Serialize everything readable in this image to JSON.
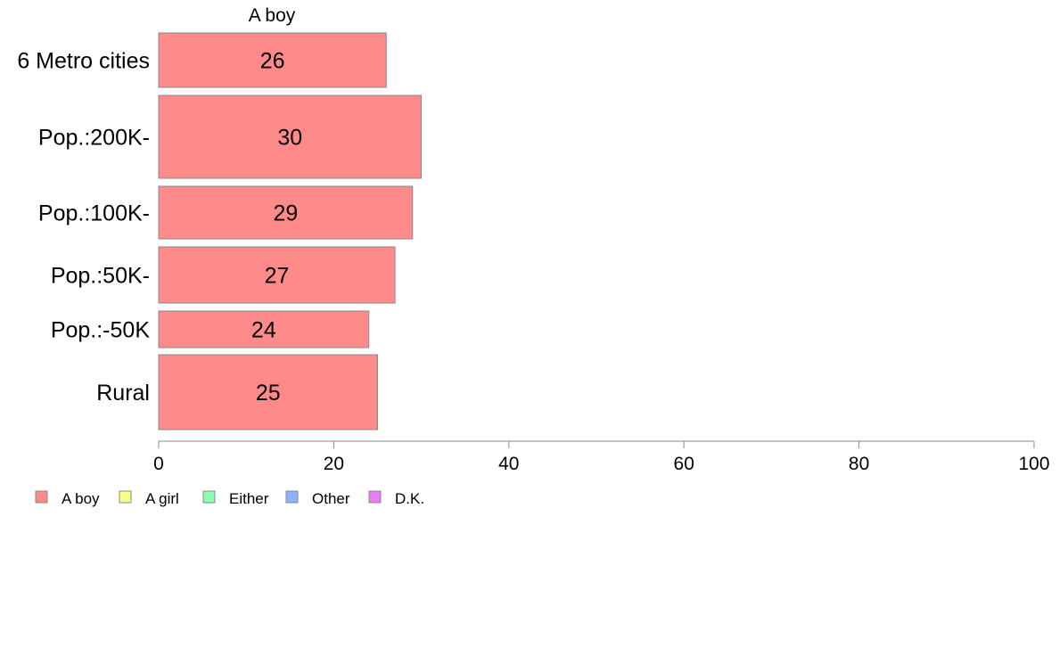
{
  "chart_data": {
    "type": "bar",
    "orientation": "horizontal",
    "categories": [
      "6 Metro cities",
      "Pop.:200K-",
      "Pop.:100K-",
      "Pop.:50K-",
      "Pop.:-50K",
      "Rural"
    ],
    "series": [
      {
        "name": "A boy",
        "values": [
          26,
          30,
          29,
          27,
          24,
          25
        ],
        "color": "#ff8a8a"
      }
    ],
    "series_title": "A boy",
    "xlim": [
      0,
      100
    ],
    "xticks": [
      0,
      20,
      40,
      60,
      80,
      100
    ],
    "grid": false,
    "legend": {
      "position": "bottom-left",
      "entries": [
        {
          "label": "A boy",
          "color": "#ff8a8a"
        },
        {
          "label": "A girl",
          "color": "#f5ff8a"
        },
        {
          "label": "Either",
          "color": "#8affb4"
        },
        {
          "label": "Other",
          "color": "#8ab4ff"
        },
        {
          "label": "D.K.",
          "color": "#e87ff0"
        }
      ]
    }
  }
}
